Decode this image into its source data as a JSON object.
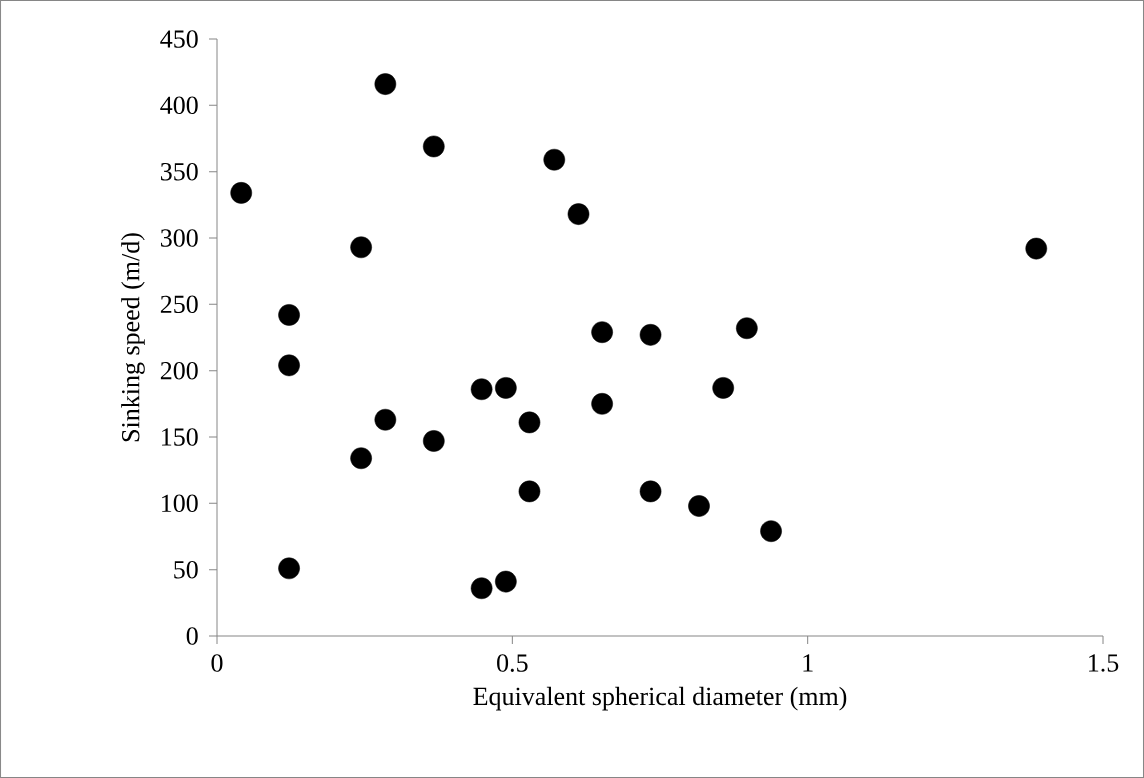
{
  "chart_data": {
    "type": "scatter",
    "xlabel": "Equivalent spherical diameter (mm)",
    "ylabel": "Sinking speed (m/d)",
    "x": [
      0.041,
      0.285,
      0.367,
      0.571,
      0.612,
      0.244,
      1.387,
      0.122,
      0.122,
      0.652,
      0.734,
      0.897,
      0.448,
      0.489,
      0.857,
      0.652,
      0.285,
      0.529,
      0.367,
      0.244,
      0.529,
      0.734,
      0.816,
      0.938,
      0.122,
      0.448,
      0.489
    ],
    "values": [
      334,
      416,
      369,
      359,
      318,
      293,
      292,
      242,
      204,
      229,
      227,
      232,
      186,
      187,
      187,
      175,
      163,
      161,
      147,
      134,
      109,
      109,
      98,
      79,
      51,
      36,
      41
    ],
    "color": "#000000",
    "marker": "circle",
    "grid": false,
    "xlim": [
      0,
      1.5
    ],
    "xticks": [
      0,
      0.5,
      1,
      1.5
    ],
    "ylim": [
      0,
      450
    ],
    "yticks": [
      0,
      50,
      100,
      150,
      200,
      250,
      300,
      350,
      400,
      450
    ]
  }
}
